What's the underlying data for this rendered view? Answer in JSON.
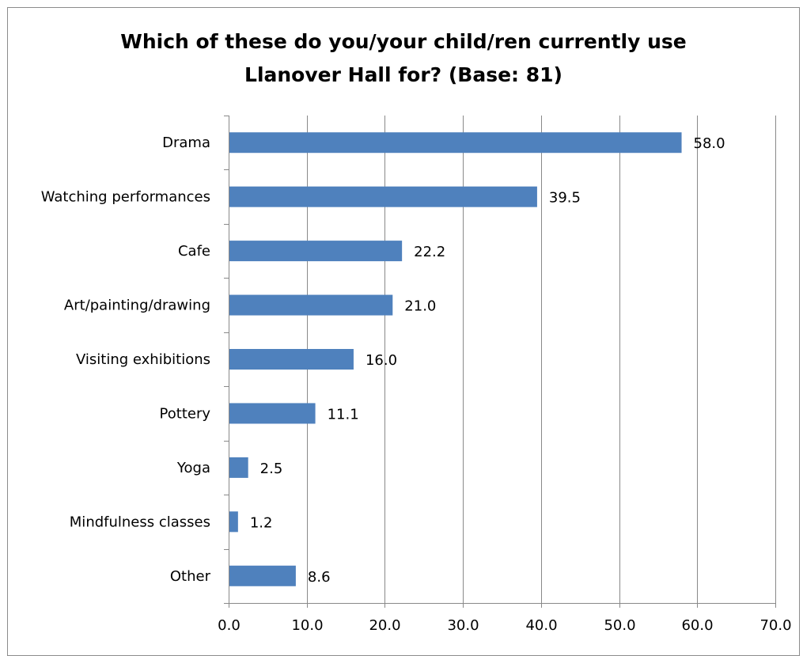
{
  "chart_data": {
    "type": "bar",
    "orientation": "horizontal",
    "title": "Which of these do you/your child/ren currently use\nLlanover Hall for? (Base: 81)",
    "categories": [
      "Drama",
      "Watching performances",
      "Cafe",
      "Art/painting/drawing",
      "Visiting exhibitions",
      "Pottery",
      "Yoga",
      "Mindfulness classes",
      "Other"
    ],
    "values": [
      58.0,
      39.5,
      22.2,
      21.0,
      16.0,
      11.1,
      2.5,
      1.2,
      8.6
    ],
    "data_labels": [
      "58.0",
      "39.5",
      "22.2",
      "21.0",
      "16.0",
      "11.1",
      "2.5",
      "1.2",
      "8.6"
    ],
    "xlim": [
      0,
      70
    ],
    "x_ticks": [
      "0.0",
      "10.0",
      "20.0",
      "30.0",
      "40.0",
      "50.0",
      "60.0",
      "70.0"
    ],
    "grid": "vertical",
    "legend": "none",
    "bar_color": "#4f81bd",
    "grid_color": "#898989"
  }
}
